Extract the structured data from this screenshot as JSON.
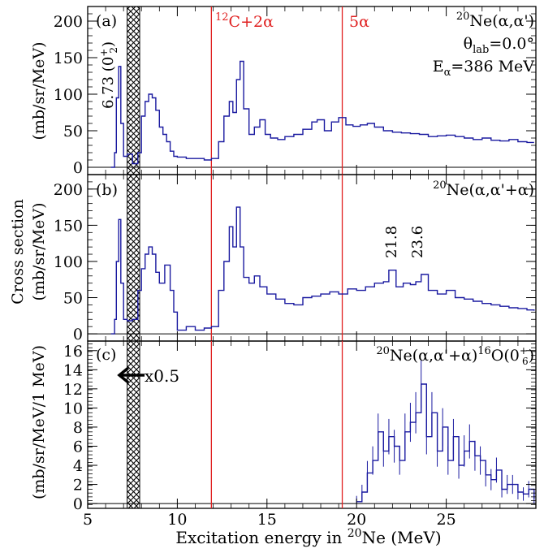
{
  "colors": {
    "spectrum": "#1a1aa0",
    "threshold": "#e02020",
    "axis": "#000000"
  },
  "x_axis": {
    "label_main": "Excitation energy in ",
    "label_sup": "20",
    "label_tail": "Ne (MeV)",
    "ticks": [
      "5",
      "10",
      "15",
      "20",
      "25"
    ]
  },
  "thresholds": [
    {
      "energy": 11.9,
      "sup": "12",
      "label": "C+2α"
    },
    {
      "energy": 19.2,
      "sup": "",
      "label": "5α"
    }
  ],
  "hatch_band": {
    "x_min": 7.2,
    "x_max": 7.9
  },
  "panels": [
    {
      "tag": "(a)",
      "ylabel": "(mb/sr/MeV)",
      "yticks": [
        "0",
        "50",
        "100",
        "150",
        "200"
      ],
      "reaction_sup": "20",
      "reaction": "Ne(α,α')",
      "theta": "θ",
      "theta_sub": "lab",
      "theta_val": "=0.0°",
      "energy": "E",
      "energy_sub": "α",
      "energy_val": "=386 MeV",
      "peak_label": "6.73 (0",
      "peak_sup": "+",
      "peak_sub": "2",
      "peak_close": ")"
    },
    {
      "tag": "(b)",
      "ylabel_line1": "Cross section",
      "ylabel_line2": "(mb/sr/MeV)",
      "yticks": [
        "0",
        "50",
        "100",
        "150",
        "200"
      ],
      "reaction_sup": "20",
      "reaction": "Ne(α,α'+α)",
      "peak1": "21.8",
      "peak2": "23.6"
    },
    {
      "tag": "(c)",
      "ylabel": "(mb/sr/MeV/1 MeV)",
      "yticks": [
        "0",
        "2",
        "4",
        "6",
        "8",
        "10",
        "12",
        "14",
        "16"
      ],
      "reaction_sup": "20",
      "reaction": "Ne(α,α'+α)",
      "product_sup": "16",
      "product": "O(0",
      "product_state_sup": "+",
      "product_state_sub": "6",
      "product_close": ")",
      "scale_note": "x0.5"
    }
  ],
  "chart_data": [
    {
      "type": "line",
      "title": "",
      "xlabel": "Excitation energy in 20Ne (MeV)",
      "ylabel": "(mb/sr/MeV)",
      "xlim": [
        5,
        30
      ],
      "ylim": [
        -10,
        220
      ],
      "series": [
        {
          "x": [
            6.3,
            6.5,
            6.6,
            6.73,
            6.85,
            7.0,
            7.2,
            7.5,
            7.8,
            8.0,
            8.2,
            8.4,
            8.6,
            8.8,
            9.0,
            9.2,
            9.4,
            9.6,
            9.8,
            10.0,
            10.5,
            11.0,
            11.5,
            11.9,
            12.3,
            12.6,
            12.9,
            13.1,
            13.3,
            13.5,
            13.7,
            14.0,
            14.3,
            14.6,
            14.9,
            15.2,
            15.6,
            16.0,
            16.5,
            17.0,
            17.5,
            17.8,
            18.2,
            18.6,
            19.0,
            19.4,
            19.8,
            20.2,
            20.6,
            21.0,
            21.5,
            22.0,
            22.5,
            23.0,
            23.5,
            24.0,
            24.5,
            25.0,
            25.5,
            26.0,
            26.5,
            27.0,
            27.5,
            28.0,
            28.5,
            29.0,
            29.5,
            29.9
          ],
          "y": [
            0,
            20,
            95,
            138,
            60,
            15,
            18,
            5,
            20,
            70,
            90,
            100,
            95,
            78,
            55,
            45,
            35,
            22,
            15,
            14,
            12,
            12,
            10,
            12,
            35,
            70,
            90,
            75,
            120,
            145,
            80,
            45,
            55,
            65,
            45,
            40,
            38,
            42,
            45,
            52,
            62,
            65,
            50,
            62,
            68,
            58,
            56,
            58,
            60,
            55,
            50,
            48,
            47,
            46,
            45,
            42,
            43,
            44,
            42,
            40,
            38,
            40,
            37,
            36,
            38,
            35,
            34,
            34
          ]
        }
      ]
    },
    {
      "type": "line",
      "title": "",
      "xlabel": "Excitation energy in 20Ne (MeV)",
      "ylabel": "Cross section (mb/sr/MeV)",
      "xlim": [
        5,
        30
      ],
      "ylim": [
        -10,
        220
      ],
      "series": [
        {
          "x": [
            6.3,
            6.5,
            6.6,
            6.73,
            6.85,
            7.0,
            7.2,
            7.5,
            7.8,
            8.0,
            8.2,
            8.4,
            8.6,
            8.8,
            9.0,
            9.3,
            9.6,
            9.8,
            10.0,
            10.5,
            11.0,
            11.5,
            11.9,
            12.3,
            12.6,
            12.9,
            13.1,
            13.3,
            13.5,
            13.7,
            14.0,
            14.3,
            14.6,
            15.0,
            15.5,
            16.0,
            16.5,
            17.0,
            17.5,
            18.0,
            18.5,
            19.0,
            19.5,
            20.0,
            20.5,
            21.0,
            21.5,
            21.8,
            22.2,
            22.6,
            23.0,
            23.3,
            23.6,
            24.0,
            24.5,
            25.0,
            25.5,
            26.0,
            26.5,
            27.0,
            27.5,
            28.0,
            28.5,
            29.0,
            29.5,
            29.9
          ],
          "y": [
            0,
            20,
            100,
            158,
            70,
            20,
            18,
            20,
            60,
            90,
            110,
            120,
            110,
            85,
            70,
            95,
            60,
            30,
            5,
            10,
            5,
            8,
            10,
            60,
            100,
            148,
            120,
            175,
            120,
            78,
            70,
            80,
            65,
            55,
            48,
            42,
            40,
            50,
            52,
            55,
            58,
            55,
            62,
            60,
            65,
            70,
            72,
            88,
            65,
            70,
            68,
            72,
            82,
            60,
            55,
            60,
            50,
            48,
            45,
            42,
            40,
            38,
            36,
            35,
            33,
            32
          ]
        }
      ]
    },
    {
      "type": "line",
      "title": "",
      "xlabel": "Excitation energy in 20Ne (MeV)",
      "ylabel": "(mb/sr/MeV/1 MeV)",
      "xlim": [
        5,
        30
      ],
      "ylim": [
        -0.5,
        17
      ],
      "series": [
        {
          "x": [
            20.0,
            20.3,
            20.6,
            20.9,
            21.2,
            21.5,
            21.8,
            22.1,
            22.4,
            22.7,
            23.0,
            23.3,
            23.6,
            23.9,
            24.2,
            24.5,
            24.8,
            25.1,
            25.4,
            25.7,
            26.0,
            26.3,
            26.6,
            26.9,
            27.2,
            27.5,
            27.8,
            28.1,
            28.4,
            28.7,
            29.0,
            29.3,
            29.6,
            29.9
          ],
          "y": [
            0.2,
            1.2,
            3.2,
            4.5,
            7.5,
            5.5,
            7.0,
            6.0,
            4.5,
            7.5,
            8.5,
            9.5,
            12.5,
            7.0,
            9.5,
            5.5,
            8.0,
            4.5,
            7.0,
            4.0,
            5.5,
            6.5,
            5.0,
            4.5,
            3.0,
            2.5,
            3.5,
            1.5,
            2.0,
            2.0,
            1.2,
            1.0,
            1.5,
            0.5
          ]
        }
      ]
    }
  ]
}
